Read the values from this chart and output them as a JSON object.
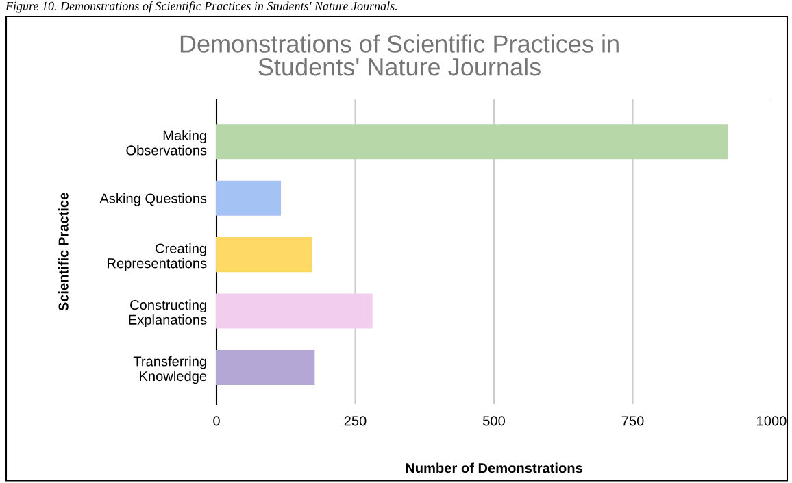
{
  "chart_data": {
    "type": "bar",
    "orientation": "horizontal",
    "title": "Demonstrations of Scientific Practices in\nStudents' Nature Journals",
    "xlabel": "Number of Demonstrations",
    "ylabel": "Scientific Practice",
    "annotations": [
      "Figure 10. Demonstrations of Scientific Practices in Students' Nature Journals."
    ],
    "categories": [
      "Making\nObservations",
      "Asking Questions",
      "Creating\nRepresentations",
      "Constructing\nExplanations",
      "Transferring\nKnowledge"
    ],
    "values": [
      921,
      116,
      172,
      281,
      177
    ],
    "colors": [
      "#b7d7a8",
      "#a4c2f4",
      "#ffd966",
      "#f2cdee",
      "#b4a7d6"
    ],
    "xlim": [
      0,
      1000
    ],
    "xticks": [
      0,
      250,
      500,
      750,
      1000
    ],
    "grid": "x",
    "legend": false
  }
}
